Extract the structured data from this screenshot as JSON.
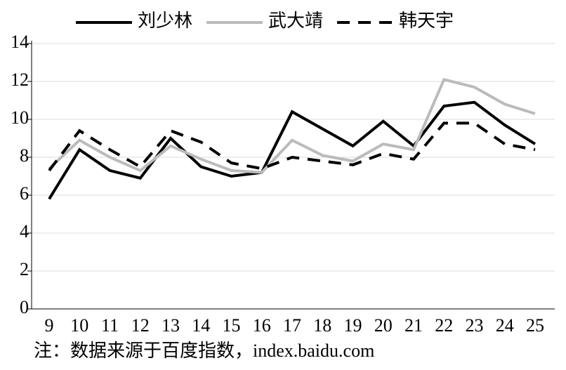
{
  "chart_data": {
    "type": "line",
    "x": [
      9,
      10,
      11,
      12,
      13,
      14,
      15,
      16,
      17,
      18,
      19,
      20,
      21,
      22,
      23,
      24,
      25
    ],
    "xlim": [
      9,
      25
    ],
    "xticks": [
      9,
      10,
      11,
      12,
      13,
      14,
      15,
      16,
      17,
      18,
      19,
      20,
      21,
      22,
      23,
      24,
      25
    ],
    "ylim": [
      0,
      14
    ],
    "yticks": [
      0,
      2,
      4,
      6,
      8,
      10,
      12,
      14
    ],
    "grid": true,
    "legend": "top",
    "series": [
      {
        "name": "刘少林",
        "color": "#000000",
        "dash": false,
        "values": [
          5.8,
          8.4,
          7.3,
          6.9,
          9.0,
          7.5,
          7.0,
          7.2,
          10.4,
          9.5,
          8.6,
          9.9,
          8.6,
          10.7,
          10.9,
          9.7,
          8.7
        ]
      },
      {
        "name": "武大靖",
        "color": "#bbbbbb",
        "dash": false,
        "values": [
          7.4,
          8.9,
          8.0,
          7.3,
          8.6,
          7.9,
          7.3,
          7.2,
          8.9,
          8.1,
          7.8,
          8.7,
          8.4,
          12.1,
          11.7,
          10.8,
          10.3
        ]
      },
      {
        "name": "韩天宇",
        "color": "#000000",
        "dash": true,
        "values": [
          7.3,
          9.4,
          8.4,
          7.5,
          9.4,
          8.8,
          7.7,
          7.4,
          8.0,
          7.8,
          7.6,
          8.2,
          7.9,
          9.8,
          9.8,
          8.7,
          8.4
        ]
      }
    ],
    "note": "注：数据来源于百度指数，index.baidu.com"
  }
}
